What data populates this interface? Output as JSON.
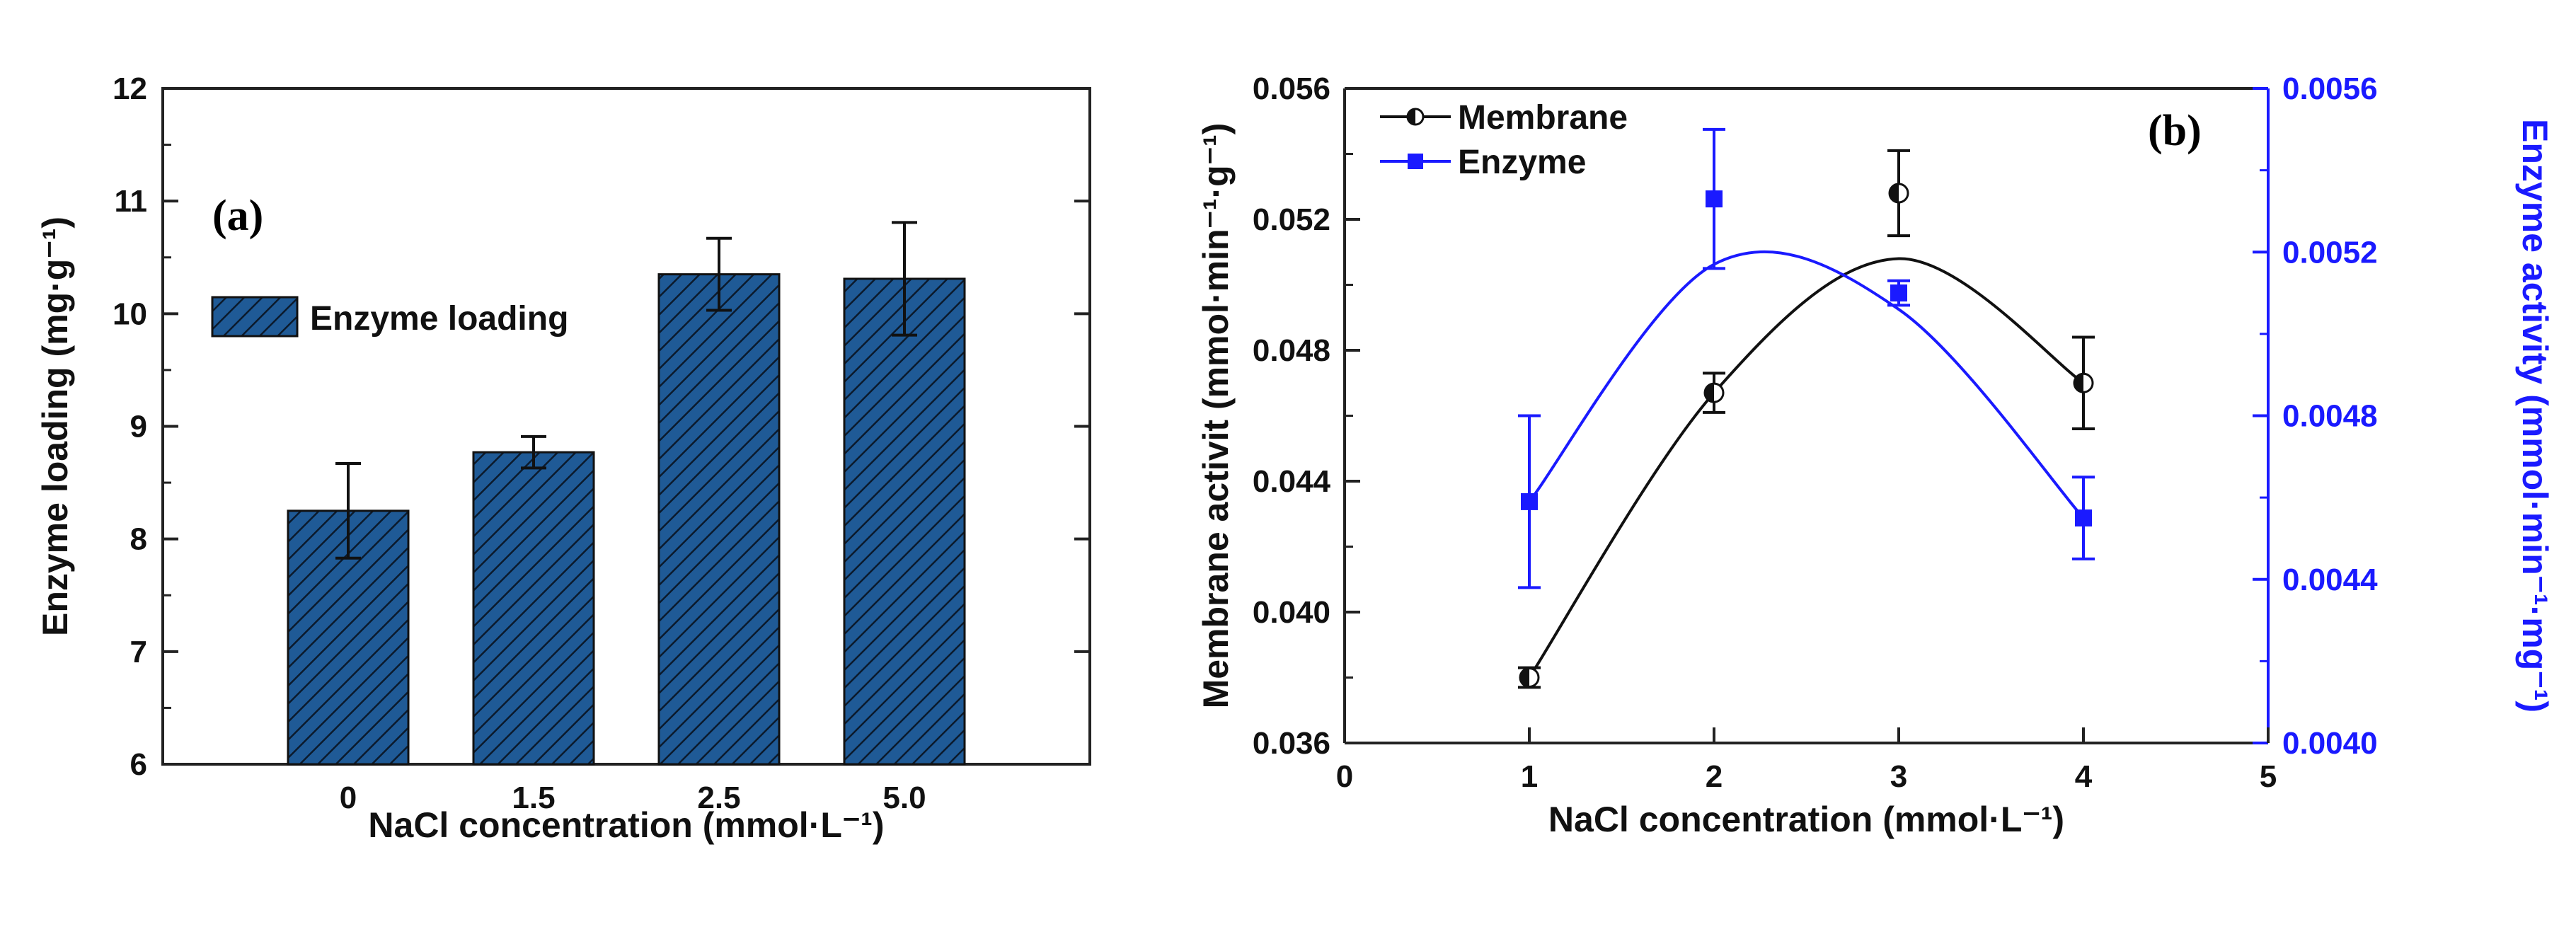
{
  "chart_data": [
    {
      "type": "bar",
      "panel_label": "(a)",
      "categories": [
        "0",
        "1.5",
        "2.5",
        "5.0"
      ],
      "series": [
        {
          "name": "Enzyme loading",
          "values": [
            8.25,
            8.77,
            10.35,
            10.31
          ],
          "errors": [
            0.42,
            0.14,
            0.32,
            0.5
          ],
          "color": "#1f5a96",
          "hatch": "diagonal"
        }
      ],
      "xlabel": "NaCl concentration (mmol·L⁻¹)",
      "ylabel": "Enzyme loading (mg·g⁻¹)",
      "ylim": [
        6,
        12
      ],
      "yticks": [
        "6",
        "7",
        "8",
        "9",
        "10",
        "11",
        "12"
      ],
      "legend": "top-left",
      "grid": false
    },
    {
      "type": "line",
      "panel_label": "(b)",
      "x": [
        1,
        2,
        3,
        4
      ],
      "xticks": [
        "0",
        "1",
        "2",
        "3",
        "4",
        "5"
      ],
      "xlim": [
        0,
        5
      ],
      "xlabel": "NaCl concentration (mmol·L⁻¹)",
      "ylabel_left": "Membrane activit (mmol·min⁻¹·g⁻¹)",
      "ylabel_right": "Enzyme activity (mmol·min⁻¹·mg⁻¹)",
      "ylim_left": [
        0.036,
        0.056
      ],
      "yticks_left": [
        "0.036",
        "0.040",
        "0.044",
        "0.048",
        "0.052",
        "0.056"
      ],
      "ylim_right": [
        0.004,
        0.0056
      ],
      "yticks_right": [
        "0.0040",
        "0.0044",
        "0.0048",
        "0.0052",
        "0.0056"
      ],
      "series": [
        {
          "name": "Membrane",
          "axis": "left",
          "color": "#111111",
          "marker": "half-open-circle",
          "values": [
            0.038,
            0.0467,
            0.0528,
            0.047
          ],
          "errors": [
            0.0003,
            0.0006,
            0.0013,
            0.0014
          ],
          "fit": [
            [
              1,
              0.038
            ],
            [
              2,
              0.0467
            ],
            [
              3,
              0.0508
            ],
            [
              4,
              0.047
            ]
          ]
        },
        {
          "name": "Enzyme",
          "axis": "right",
          "color": "#1a1aff",
          "marker": "square",
          "values": [
            0.00459,
            0.00533,
            0.0051,
            0.00455
          ],
          "errors": [
            0.00021,
            0.00017,
            3e-05,
            0.0001
          ],
          "fit": [
            [
              1,
              0.00459
            ],
            [
              2,
              0.00517
            ],
            [
              3,
              0.00506
            ],
            [
              4,
              0.00455
            ]
          ]
        }
      ],
      "legend": "top-left",
      "grid": false
    }
  ]
}
